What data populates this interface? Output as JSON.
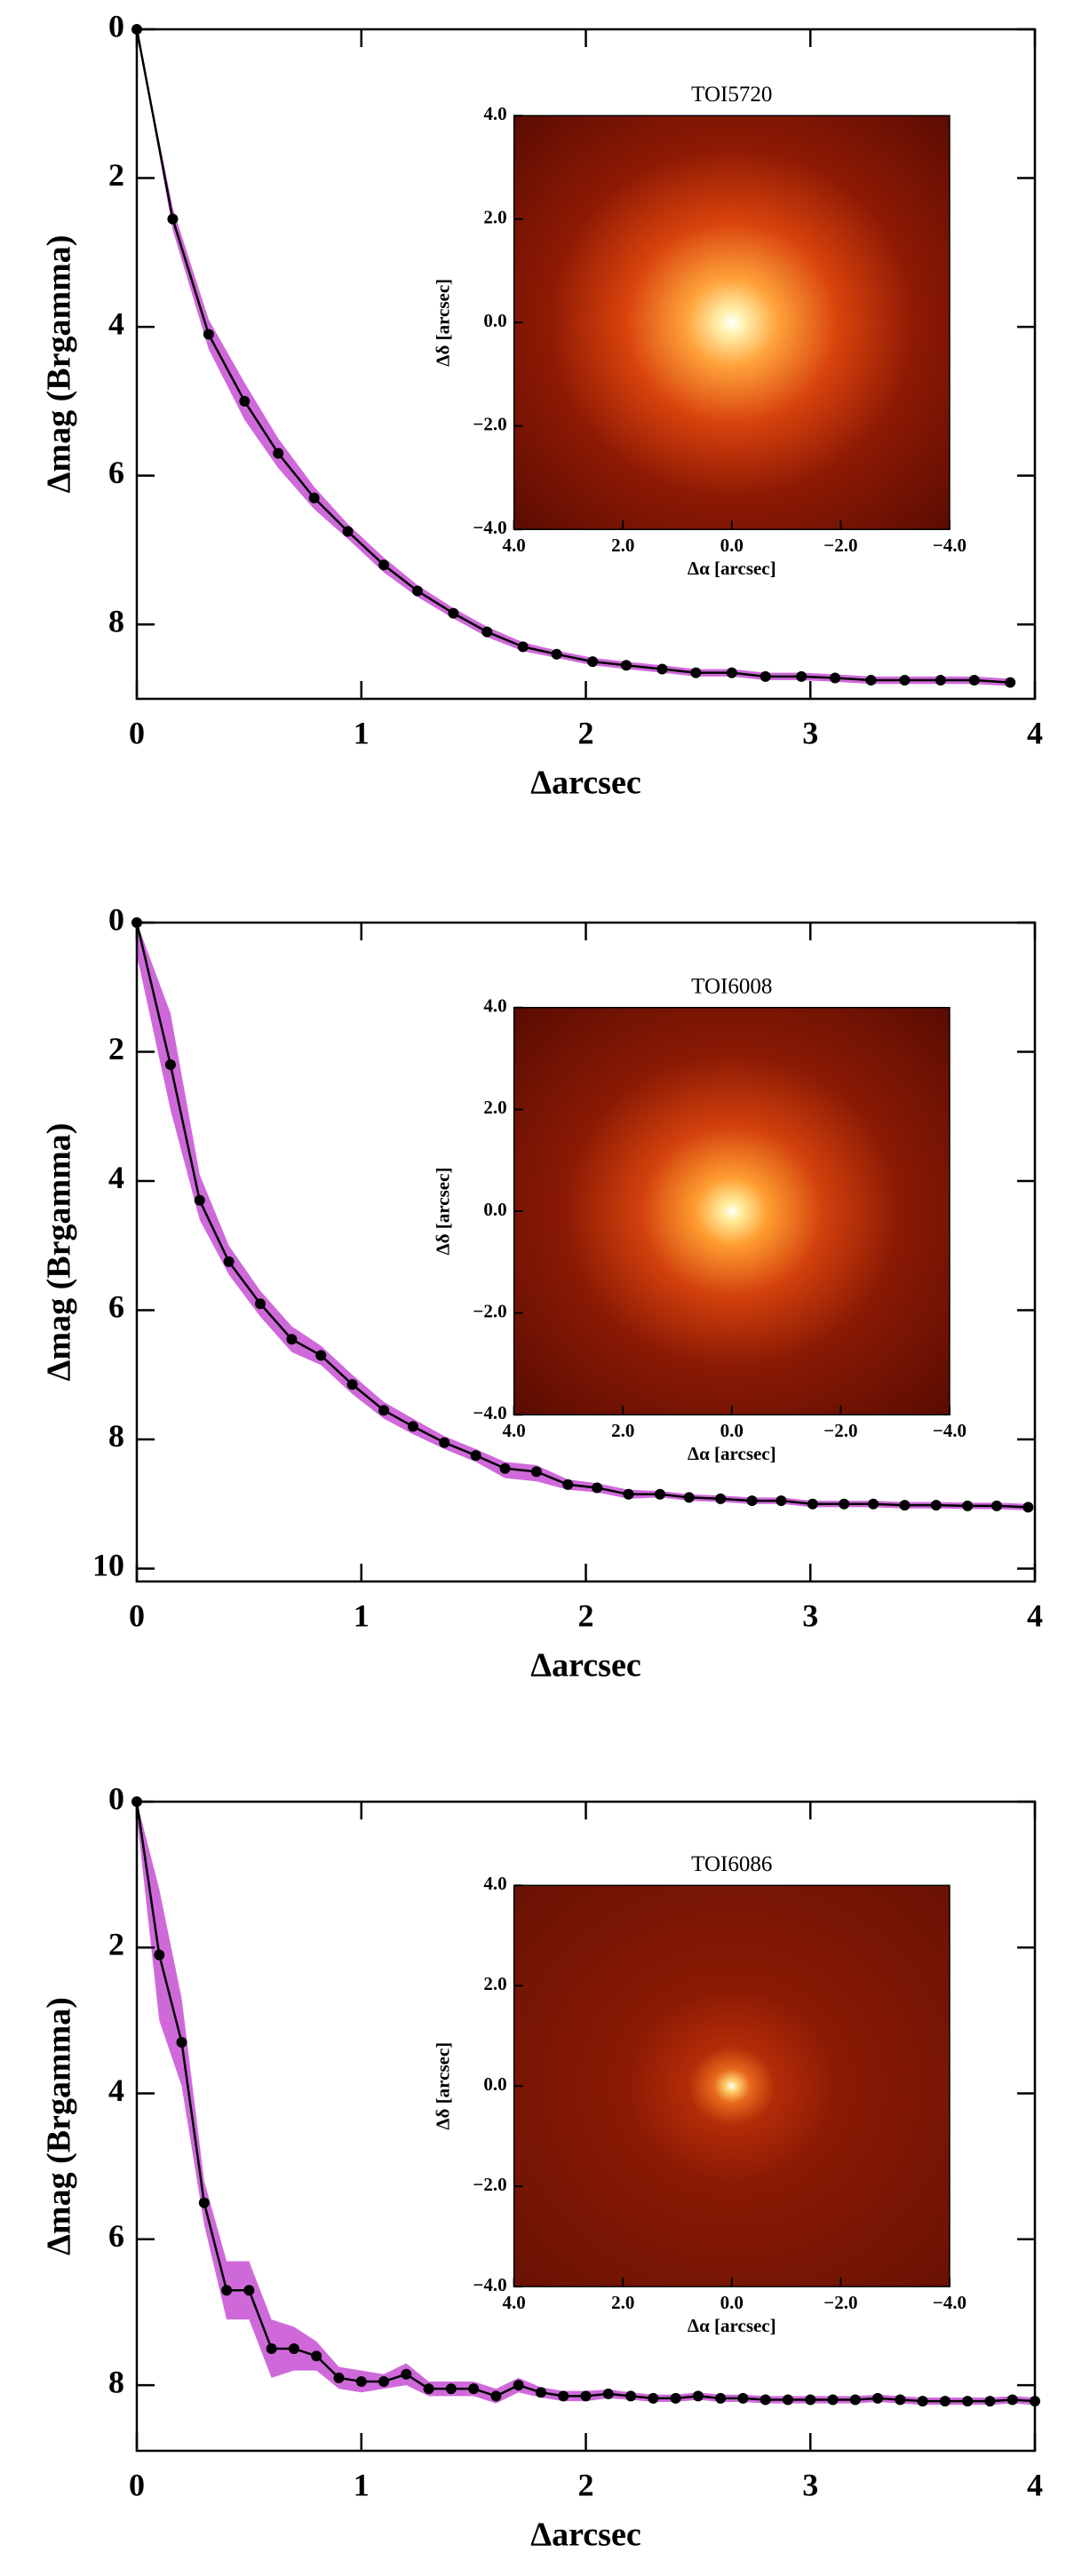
{
  "chart_data": [
    {
      "type": "line",
      "title": "TOI5720",
      "xlabel": "Δarcsec",
      "ylabel": "Δmag (Brgamma)",
      "color": "#000000",
      "x": [
        0,
        0.16,
        0.32,
        0.48,
        0.63,
        0.79,
        0.94,
        1.1,
        1.25,
        1.41,
        1.56,
        1.72,
        1.87,
        2.03,
        2.18,
        2.34,
        2.49,
        2.65,
        2.8,
        2.96,
        3.11,
        3.27,
        3.42,
        3.58,
        3.73,
        3.89
      ],
      "values": [
        0,
        2.55,
        4.1,
        5.0,
        5.7,
        6.3,
        6.75,
        7.2,
        7.55,
        7.85,
        8.1,
        8.3,
        8.4,
        8.5,
        8.55,
        8.6,
        8.65,
        8.65,
        8.7,
        8.7,
        8.72,
        8.75,
        8.75,
        8.75,
        8.75,
        8.78
      ],
      "band": {
        "color": "#c74fd3",
        "lower": [
          0,
          2.4,
          3.9,
          4.75,
          5.5,
          6.15,
          6.65,
          7.1,
          7.47,
          7.78,
          8.03,
          8.24,
          8.35,
          8.45,
          8.5,
          8.55,
          8.6,
          8.6,
          8.65,
          8.65,
          8.67,
          8.7,
          8.7,
          8.7,
          8.7,
          8.73
        ],
        "upper": [
          0,
          2.7,
          4.3,
          5.25,
          5.9,
          6.45,
          6.85,
          7.3,
          7.63,
          7.92,
          8.17,
          8.36,
          8.45,
          8.55,
          8.6,
          8.65,
          8.7,
          8.7,
          8.75,
          8.75,
          8.77,
          8.8,
          8.8,
          8.8,
          8.8,
          8.83
        ]
      },
      "xlim": [
        0,
        4
      ],
      "ylim": [
        9,
        0
      ],
      "xticks": [
        0,
        1,
        2,
        3,
        4
      ],
      "yticks": [
        0,
        2,
        4,
        6,
        8
      ],
      "inset": {
        "xlabel": "Δα [arcsec]",
        "ylabel": "Δδ [arcsec]",
        "xlim": [
          4,
          -4
        ],
        "ylim": [
          -4,
          4
        ],
        "xticks": [
          {
            "value": 4,
            "label": "4.0"
          },
          {
            "value": 2,
            "label": "2.0"
          },
          {
            "value": 0,
            "label": "0.0"
          },
          {
            "value": -2,
            "label": "−2.0"
          },
          {
            "value": -4,
            "label": "−4.0"
          }
        ],
        "yticks": [
          {
            "value": 4,
            "label": "4.0"
          },
          {
            "value": 2,
            "label": "2.0"
          },
          {
            "value": 0,
            "label": "0.0"
          },
          {
            "value": -2,
            "label": "−2.0"
          },
          {
            "value": -4,
            "label": "−4.0"
          }
        ]
      }
    },
    {
      "type": "line",
      "title": "TOI6008",
      "xlabel": "Δarcsec",
      "ylabel": "Δmag (Brgamma)",
      "color": "#000000",
      "x": [
        0,
        0.15,
        0.28,
        0.41,
        0.55,
        0.69,
        0.82,
        0.96,
        1.1,
        1.23,
        1.37,
        1.51,
        1.64,
        1.78,
        1.92,
        2.05,
        2.19,
        2.33,
        2.46,
        2.6,
        2.74,
        2.87,
        3.01,
        3.15,
        3.28,
        3.42,
        3.56,
        3.7,
        3.83,
        3.97
      ],
      "values": [
        0,
        2.2,
        4.3,
        5.25,
        5.9,
        6.45,
        6.7,
        7.15,
        7.55,
        7.8,
        8.05,
        8.25,
        8.45,
        8.5,
        8.7,
        8.75,
        8.85,
        8.85,
        8.9,
        8.92,
        8.95,
        8.95,
        9.0,
        9.0,
        9.0,
        9.02,
        9.02,
        9.03,
        9.03,
        9.05
      ],
      "band": {
        "color": "#c74fd3",
        "lower": [
          0,
          1.4,
          3.9,
          5.0,
          5.7,
          6.25,
          6.55,
          7.0,
          7.42,
          7.68,
          7.95,
          8.15,
          8.35,
          8.4,
          8.62,
          8.68,
          8.78,
          8.8,
          8.85,
          8.87,
          8.9,
          8.9,
          8.95,
          8.95,
          8.95,
          8.97,
          8.97,
          8.98,
          8.98,
          9.0
        ],
        "upper": [
          0.5,
          2.9,
          4.6,
          5.45,
          6.1,
          6.65,
          6.85,
          7.3,
          7.68,
          7.92,
          8.15,
          8.35,
          8.6,
          8.65,
          8.78,
          8.82,
          8.92,
          8.9,
          8.95,
          8.97,
          9.0,
          9.0,
          9.05,
          9.05,
          9.05,
          9.07,
          9.07,
          9.08,
          9.08,
          9.1
        ]
      },
      "xlim": [
        0,
        4
      ],
      "ylim": [
        10.2,
        0
      ],
      "xticks": [
        0,
        1,
        2,
        3,
        4
      ],
      "yticks": [
        0,
        2,
        4,
        6,
        8,
        10
      ],
      "inset": {
        "xlabel": "Δα [arcsec]",
        "ylabel": "Δδ [arcsec]",
        "xlim": [
          4,
          -4
        ],
        "ylim": [
          -4,
          4
        ],
        "xticks": [
          {
            "value": 4,
            "label": "4.0"
          },
          {
            "value": 2,
            "label": "2.0"
          },
          {
            "value": 0,
            "label": "0.0"
          },
          {
            "value": -2,
            "label": "−2.0"
          },
          {
            "value": -4,
            "label": "−4.0"
          }
        ],
        "yticks": [
          {
            "value": 4,
            "label": "4.0"
          },
          {
            "value": 2,
            "label": "2.0"
          },
          {
            "value": 0,
            "label": "0.0"
          },
          {
            "value": -2,
            "label": "−2.0"
          },
          {
            "value": -4,
            "label": "−4.0"
          }
        ]
      }
    },
    {
      "type": "line",
      "title": "TOI6086",
      "xlabel": "Δarcsec",
      "ylabel": "Δmag (Brgamma)",
      "color": "#000000",
      "x": [
        0,
        0.1,
        0.2,
        0.3,
        0.4,
        0.5,
        0.6,
        0.7,
        0.8,
        0.9,
        1.0,
        1.1,
        1.2,
        1.3,
        1.4,
        1.5,
        1.6,
        1.7,
        1.8,
        1.9,
        2.0,
        2.1,
        2.2,
        2.3,
        2.4,
        2.5,
        2.6,
        2.7,
        2.8,
        2.9,
        3.0,
        3.1,
        3.2,
        3.3,
        3.4,
        3.5,
        3.6,
        3.7,
        3.8,
        3.9,
        4.0
      ],
      "values": [
        0,
        2.1,
        3.3,
        5.5,
        6.7,
        6.7,
        7.5,
        7.5,
        7.6,
        7.9,
        7.95,
        7.95,
        7.85,
        8.05,
        8.05,
        8.05,
        8.15,
        8.0,
        8.1,
        8.15,
        8.15,
        8.12,
        8.15,
        8.18,
        8.18,
        8.15,
        8.18,
        8.18,
        8.2,
        8.2,
        8.2,
        8.2,
        8.2,
        8.18,
        8.2,
        8.22,
        8.22,
        8.22,
        8.22,
        8.2,
        8.22
      ],
      "band": {
        "color": "#c74fd3",
        "lower": [
          0,
          1.2,
          2.7,
          5.2,
          6.3,
          6.3,
          7.1,
          7.2,
          7.4,
          7.75,
          7.8,
          7.85,
          7.7,
          7.95,
          7.95,
          7.95,
          8.05,
          7.9,
          8.03,
          8.08,
          8.08,
          8.06,
          8.1,
          8.13,
          8.13,
          8.1,
          8.13,
          8.13,
          8.15,
          8.15,
          8.15,
          8.15,
          8.15,
          8.13,
          8.15,
          8.17,
          8.17,
          8.17,
          8.17,
          8.15,
          8.17
        ],
        "upper": [
          0.2,
          3.0,
          3.9,
          5.8,
          7.1,
          7.1,
          7.9,
          7.8,
          7.8,
          8.05,
          8.1,
          8.05,
          8.0,
          8.15,
          8.15,
          8.15,
          8.25,
          8.1,
          8.17,
          8.22,
          8.22,
          8.18,
          8.2,
          8.23,
          8.23,
          8.2,
          8.23,
          8.23,
          8.25,
          8.25,
          8.25,
          8.25,
          8.25,
          8.23,
          8.25,
          8.27,
          8.27,
          8.27,
          8.27,
          8.25,
          8.27
        ]
      },
      "xlim": [
        0,
        4
      ],
      "ylim": [
        8.9,
        0
      ],
      "xticks": [
        0,
        1,
        2,
        3,
        4
      ],
      "yticks": [
        0,
        2,
        4,
        6,
        8
      ],
      "inset": {
        "xlabel": "Δα [arcsec]",
        "ylabel": "Δδ [arcsec]",
        "xlim": [
          4,
          -4
        ],
        "ylim": [
          -4,
          4
        ],
        "xticks": [
          {
            "value": 4,
            "label": "4.0"
          },
          {
            "value": 2,
            "label": "2.0"
          },
          {
            "value": 0,
            "label": "0.0"
          },
          {
            "value": -2,
            "label": "−2.0"
          },
          {
            "value": -4,
            "label": "−4.0"
          }
        ],
        "yticks": [
          {
            "value": 4,
            "label": "4.0"
          },
          {
            "value": 2,
            "label": "2.0"
          },
          {
            "value": 0,
            "label": "0.0"
          },
          {
            "value": -2,
            "label": "−2.0"
          },
          {
            "value": -4,
            "label": "−4.0"
          }
        ]
      }
    }
  ]
}
